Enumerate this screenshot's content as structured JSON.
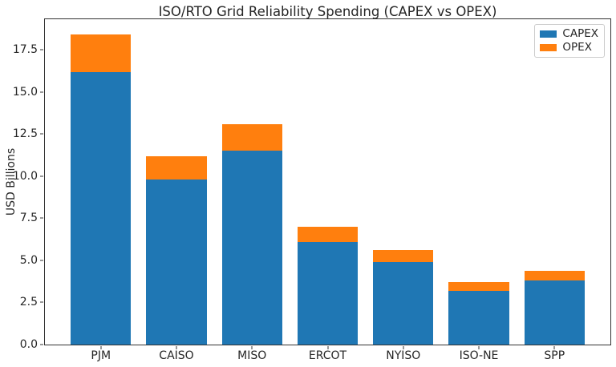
{
  "chart_data": {
    "type": "bar",
    "stacked": true,
    "title": "ISO/RTO Grid Reliability Spending (CAPEX vs OPEX)",
    "xlabel": "",
    "ylabel": "USD Billions",
    "categories": [
      "PJM",
      "CAISO",
      "MISO",
      "ERCOT",
      "NYISO",
      "ISO-NE",
      "SPP"
    ],
    "series": [
      {
        "name": "CAPEX",
        "color": "#1f77b4",
        "values": [
          16.2,
          9.8,
          11.5,
          6.1,
          4.9,
          3.2,
          3.8
        ]
      },
      {
        "name": "OPEX",
        "color": "#ff7f0e",
        "values": [
          2.2,
          1.4,
          1.6,
          0.9,
          0.7,
          0.5,
          0.6
        ]
      }
    ],
    "stack_totals": [
      18.4,
      11.2,
      13.1,
      7.0,
      5.6,
      3.7,
      4.4
    ],
    "ylim": [
      0,
      19.32
    ],
    "yticks": [
      {
        "value": 0.0,
        "label": "0.0"
      },
      {
        "value": 2.5,
        "label": "2.5"
      },
      {
        "value": 5.0,
        "label": "5.0"
      },
      {
        "value": 7.5,
        "label": "7.5"
      },
      {
        "value": 10.0,
        "label": "10.0"
      },
      {
        "value": 12.5,
        "label": "12.5"
      },
      {
        "value": 15.0,
        "label": "15.0"
      },
      {
        "value": 17.5,
        "label": "17.5"
      }
    ],
    "legend_position": "upper right",
    "grid": false,
    "colors": {
      "axis": "#333333",
      "text": "#262626",
      "legend_border": "#cccccc",
      "background": "#ffffff"
    }
  }
}
